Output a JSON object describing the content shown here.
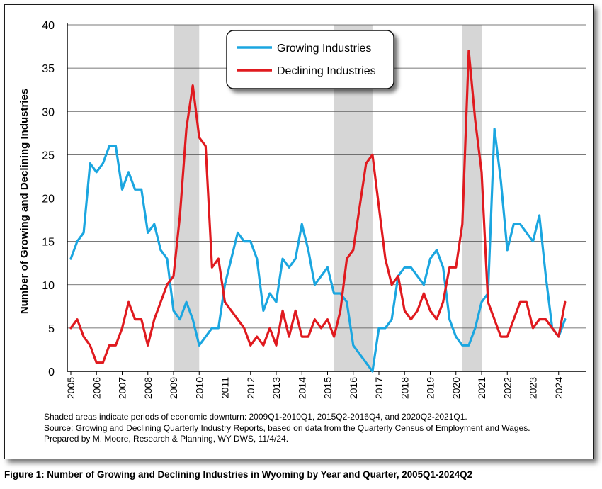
{
  "chart_data": {
    "type": "line",
    "title": "",
    "xlabel": "",
    "ylabel": "Number of Growing and Declining Industries",
    "ylim": [
      0,
      40
    ],
    "y_ticks": [
      "0",
      "5",
      "10",
      "15",
      "20",
      "25",
      "30",
      "35",
      "40"
    ],
    "x_tick_labels": [
      "2005",
      "2006",
      "2007",
      "2008",
      "2009",
      "2010",
      "2011",
      "2012",
      "2013",
      "2014",
      "2015",
      "2016",
      "2017",
      "2018",
      "2019",
      "2020",
      "2021",
      "2022",
      "2023",
      "2024"
    ],
    "x_start_year": 2005,
    "grid": "horizontal",
    "legend_position": "top-center",
    "shaded_periods": [
      {
        "start": "2009Q1",
        "end": "2010Q1"
      },
      {
        "start": "2015Q2",
        "end": "2016Q4"
      },
      {
        "start": "2020Q2",
        "end": "2021Q1"
      }
    ],
    "series": [
      {
        "name": "Growing Industries",
        "color": "#1ba6e0",
        "values": [
          13,
          15,
          16,
          24,
          23,
          24,
          26,
          26,
          21,
          23,
          21,
          21,
          16,
          17,
          14,
          13,
          7,
          6,
          8,
          6,
          3,
          4,
          5,
          5,
          10,
          13,
          16,
          15,
          15,
          13,
          7,
          9,
          8,
          13,
          12,
          13,
          17,
          14,
          10,
          11,
          12,
          9,
          9,
          8,
          3,
          2,
          1,
          0,
          5,
          5,
          6,
          11,
          12,
          12,
          11,
          10,
          13,
          14,
          12,
          6,
          4,
          3,
          3,
          5,
          8,
          9,
          28,
          22,
          14,
          17,
          17,
          16,
          15,
          18,
          11,
          5,
          4,
          6
        ]
      },
      {
        "name": "Declining Industries",
        "color": "#e01a1f",
        "values": [
          5,
          6,
          4,
          3,
          1,
          1,
          3,
          3,
          5,
          8,
          6,
          6,
          3,
          6,
          8,
          10,
          11,
          18,
          28,
          33,
          27,
          26,
          12,
          13,
          8,
          7,
          6,
          5,
          3,
          4,
          3,
          5,
          3,
          7,
          4,
          7,
          4,
          4,
          6,
          5,
          6,
          4,
          7,
          13,
          14,
          19,
          24,
          25,
          19,
          13,
          10,
          11,
          7,
          6,
          7,
          9,
          7,
          6,
          8,
          12,
          12,
          17,
          37,
          29,
          23,
          8,
          6,
          4,
          4,
          6,
          8,
          8,
          5,
          6,
          6,
          5,
          4,
          8
        ]
      }
    ]
  },
  "notes": [
    "Shaded areas indicate periods of economic downturn: 2009Q1-2010Q1, 2015Q2-2016Q4, and 2020Q2-2021Q1.",
    "Source: Growing and Declining Quarterly Industry Reports, based on data from the Quarterly Census of Employment and Wages.",
    "Prepared by M. Moore, Research & Planning, WY DWS, 11/4/24."
  ],
  "caption": "Figure 1: Number of Growing and Declining Industries in Wyoming by Year and Quarter, 2005Q1-2024Q2"
}
